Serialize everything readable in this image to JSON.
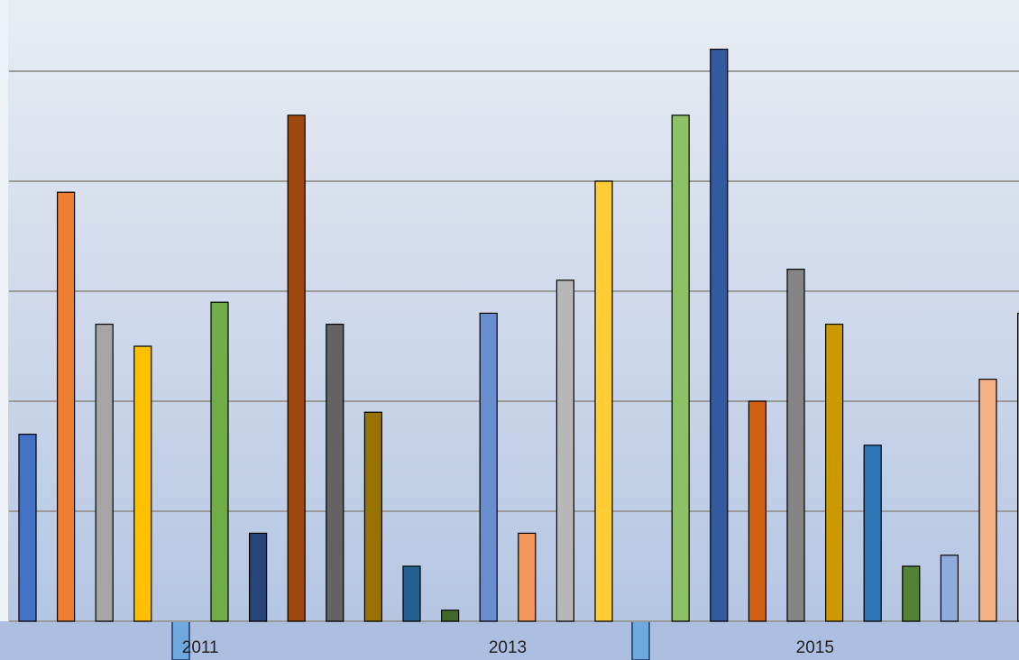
{
  "chart_data": {
    "type": "bar",
    "categories": [
      null,
      null,
      null,
      null,
      "2011",
      null,
      null,
      null,
      null,
      null,
      null,
      null,
      "2013",
      null,
      null,
      null,
      null,
      null,
      null,
      null,
      "2015",
      null,
      null,
      null,
      null,
      null,
      null
    ],
    "values": [
      1.7,
      3.9,
      2.7,
      2.5,
      null,
      2.9,
      0.8,
      4.6,
      2.7,
      1.9,
      0.5,
      0.1,
      2.8,
      0.8,
      3.1,
      4.0,
      null,
      4.6,
      5.2,
      2.0,
      3.2,
      2.7,
      1.6,
      0.5,
      0.6,
      2.2,
      2.8
    ],
    "colors": [
      "#4472c4",
      "#ed7d31",
      "#a5a5a5",
      "#ffc000",
      null,
      "#70ad47",
      "#264478",
      "#9e480e",
      "#636363",
      "#997300",
      "#255e91",
      "#43682b",
      "#698ed0",
      "#f1975a",
      "#b7b7b7",
      "#ffcd33",
      null,
      "#8cc168",
      "#335aa1",
      "#d26012",
      "#848484",
      "#cc9a00",
      "#2e75b6",
      "#548235",
      "#8faadc",
      "#f4b183",
      "#a5a5a5"
    ],
    "ylim": [
      0,
      5.6
    ],
    "yticks": [
      0,
      1,
      2,
      3,
      4,
      5
    ],
    "grid": true
  }
}
